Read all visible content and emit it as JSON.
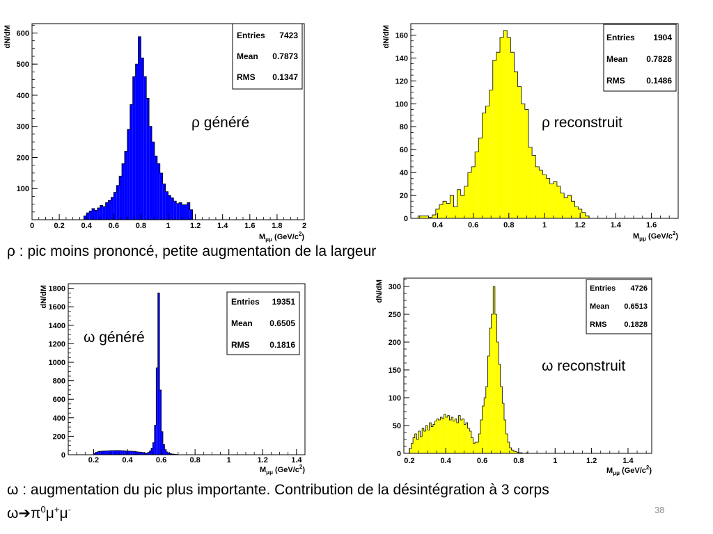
{
  "slide": {
    "caption_rho": "ρ : pic moins prononcé, petite augmentation de la largeur",
    "caption_omega_line1": "ω : augmentation du pic plus importante. Contribution de la désintégration à 3 corps",
    "caption_omega_line2_lhs": "ω",
    "caption_omega_line2_arrow": "➔",
    "caption_omega_line2_rhs_pi": "π",
    "caption_omega_line2_rhs_pi_sup": "0",
    "caption_omega_line2_rhs_mu1": "μ",
    "caption_omega_line2_rhs_mu1_sup": "+",
    "caption_omega_line2_rhs_mu2": "μ",
    "caption_omega_line2_rhs_mu2_sup": "-",
    "page_number": "38"
  },
  "colors": {
    "blue": "#0000ff",
    "yellow": "#ffff00",
    "outline": "#000000"
  },
  "chart_data": [
    {
      "type": "bar",
      "annotation": "ρ généré",
      "fill": "#0000ff",
      "ylabel": "dN/dM",
      "xlabel_main": "M",
      "xlabel_sub": "μμ",
      "xlabel_unit": "(GeV/c",
      "xlabel_unit_sup": "2",
      "xlabel_unit_close": ")",
      "xlim": [
        0,
        2
      ],
      "ylim": [
        0,
        630
      ],
      "xticks": [
        "0",
        "0.2",
        "0.4",
        "0.6",
        "0.8",
        "1",
        "1.2",
        "1.4",
        "1.6",
        "1.8",
        "2"
      ],
      "yticks": [
        "100",
        "200",
        "300",
        "400",
        "500",
        "600"
      ],
      "stats": {
        "entries_label": "Entries",
        "entries": "7423",
        "mean_label": "Mean",
        "mean": "0.7873",
        "rms_label": "RMS",
        "rms": "0.1347"
      },
      "bin_start": 0.38,
      "bin_width": 0.02,
      "values": [
        12,
        22,
        28,
        36,
        30,
        38,
        46,
        42,
        55,
        62,
        72,
        88,
        110,
        140,
        180,
        220,
        290,
        370,
        460,
        500,
        588,
        520,
        460,
        390,
        300,
        250,
        205,
        180,
        150,
        115,
        90,
        78,
        70,
        60,
        52,
        55,
        48,
        48,
        55,
        32
      ]
    },
    {
      "type": "bar",
      "annotation": "ρ reconstruit",
      "fill": "#ffff00",
      "ylabel": "dN/dM",
      "xlabel_main": "M",
      "xlabel_sub": "μμ",
      "xlabel_unit": "(GeV/c",
      "xlabel_unit_sup": "2",
      "xlabel_unit_close": ")",
      "xlim": [
        0.25,
        1.75
      ],
      "ylim": [
        0,
        170
      ],
      "xticks": [
        "0.4",
        "0.6",
        "0.8",
        "1",
        "1.2",
        "1.4",
        "1.6"
      ],
      "xtick_values": [
        0.4,
        0.6,
        0.8,
        1.0,
        1.2,
        1.4,
        1.6
      ],
      "yticks": [
        "0",
        "20",
        "40",
        "60",
        "80",
        "100",
        "120",
        "140",
        "160"
      ],
      "stats": {
        "entries_label": "Entries",
        "entries": "1904",
        "mean_label": "Mean",
        "mean": "0.7828",
        "rms_label": "RMS",
        "rms": "0.1486"
      },
      "bin_start": 0.29,
      "bin_width": 0.02,
      "values": [
        2,
        2,
        2,
        1,
        3,
        8,
        12,
        15,
        13,
        20,
        10,
        25,
        20,
        28,
        40,
        45,
        58,
        70,
        92,
        98,
        112,
        138,
        145,
        158,
        164,
        158,
        145,
        128,
        115,
        100,
        95,
        62,
        55,
        45,
        42,
        38,
        35,
        30,
        32,
        28,
        22,
        18,
        20,
        15,
        10,
        8,
        5,
        2
      ]
    },
    {
      "type": "bar",
      "annotation": "ω généré",
      "fill": "#0000ff",
      "ylabel": "dN/dM",
      "xlabel_main": "M",
      "xlabel_sub": "μμ",
      "xlabel_unit": "(GeV/c",
      "xlabel_unit_sup": "2",
      "xlabel_unit_close": ")",
      "xlim": [
        0.05,
        1.45
      ],
      "ylim": [
        0,
        1850
      ],
      "xticks": [
        "0.2",
        "0.4",
        "0.6",
        "0.8",
        "1",
        "1.2",
        "1.4"
      ],
      "xtick_values": [
        0.2,
        0.4,
        0.6,
        0.8,
        1.0,
        1.2,
        1.4
      ],
      "yticks": [
        "0",
        "200",
        "400",
        "600",
        "800",
        "1000",
        "1200",
        "1400",
        "1600",
        "1800"
      ],
      "stats": {
        "entries_label": "Entries",
        "entries": "19351",
        "mean_label": "Mean",
        "mean": "0.6505",
        "rms_label": "RMS",
        "rms": "0.1816"
      },
      "bin_start": 0.2,
      "bin_width": 0.01,
      "values": [
        15,
        25,
        32,
        36,
        38,
        40,
        40,
        42,
        42,
        44,
        45,
        45,
        44,
        46,
        45,
        46,
        44,
        44,
        42,
        40,
        40,
        38,
        38,
        36,
        36,
        32,
        30,
        28,
        26,
        22,
        20,
        18,
        25,
        40,
        70,
        130,
        320,
        940,
        1750,
        700,
        250,
        110,
        55,
        30,
        20,
        12,
        8,
        6,
        4,
        3
      ]
    },
    {
      "type": "bar",
      "annotation": "ω reconstruit",
      "fill": "#ffff00",
      "ylabel": "dN/dM",
      "xlabel_main": "M",
      "xlabel_sub": "μμ",
      "xlabel_unit": "(GeV/c",
      "xlabel_unit_sup": "2",
      "xlabel_unit_close": ")",
      "xlim": [
        0.17,
        1.53
      ],
      "ylim": [
        0,
        315
      ],
      "xticks": [
        "0.2",
        "0.4",
        "0.6",
        "0.8",
        "1",
        "1.2",
        "1.4"
      ],
      "xtick_values": [
        0.2,
        0.4,
        0.6,
        0.8,
        1.0,
        1.2,
        1.4
      ],
      "yticks": [
        "0",
        "50",
        "100",
        "150",
        "200",
        "250",
        "300"
      ],
      "stats": {
        "entries_label": "Entries",
        "entries": "4726",
        "mean_label": "Mean",
        "mean": "0.6513",
        "rms_label": "RMS",
        "rms": "0.1828"
      },
      "bin_start": 0.2,
      "bin_width": 0.01,
      "values": [
        8,
        18,
        28,
        35,
        25,
        40,
        30,
        45,
        40,
        50,
        42,
        55,
        48,
        52,
        58,
        62,
        60,
        65,
        62,
        70,
        65,
        68,
        60,
        65,
        58,
        62,
        55,
        68,
        60,
        62,
        52,
        55,
        45,
        40,
        28,
        18,
        20,
        20,
        35,
        60,
        85,
        100,
        120,
        175,
        225,
        250,
        300,
        250,
        200,
        160,
        120,
        90,
        60,
        35,
        20,
        10,
        6,
        4,
        3,
        2,
        1,
        1,
        0,
        0,
        1,
        0,
        0,
        0,
        0,
        0,
        0,
        0,
        0,
        0,
        0,
        0,
        0,
        0,
        0,
        0,
        0,
        0,
        0,
        0,
        0,
        0,
        0,
        0,
        0,
        0,
        0,
        0,
        0,
        0,
        0,
        0,
        0,
        0,
        0,
        0
      ]
    }
  ]
}
